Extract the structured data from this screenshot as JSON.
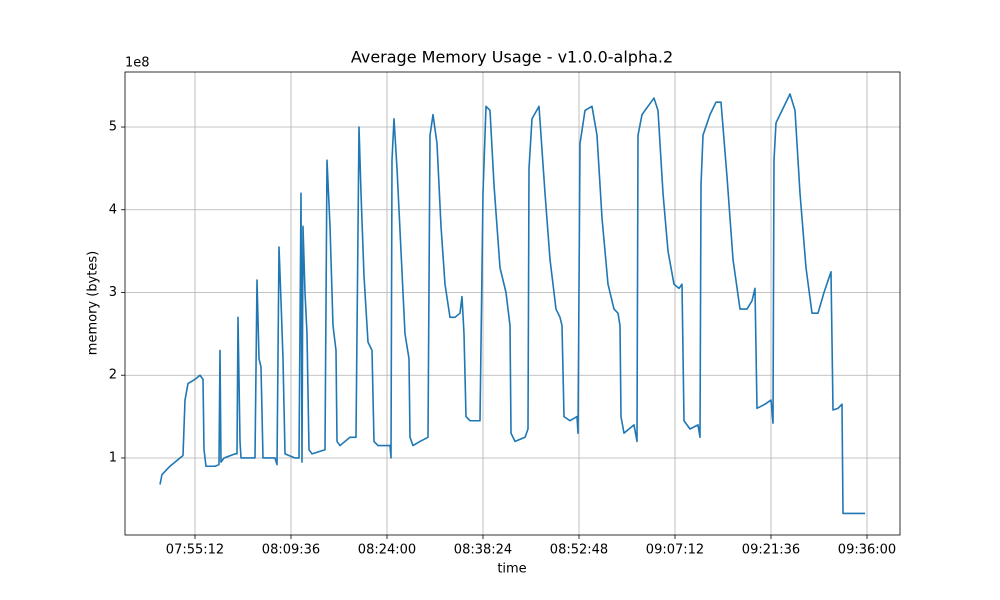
{
  "chart_data": {
    "type": "line",
    "title": "Average Memory Usage  -  v1.0.0-alpha.2",
    "x_label": "time",
    "y_label": "memory (bytes)",
    "y_offset_text": "1e8",
    "color": "#1f77b4",
    "grid": true,
    "xlim": [
      "07:44:42",
      "09:40:57"
    ],
    "xticks": [
      "07:55:12",
      "08:09:36",
      "08:24:00",
      "08:38:24",
      "08:52:48",
      "09:07:12",
      "09:21:36",
      "09:36:00"
    ],
    "ylim": [
      6900000.0,
      566500000.0
    ],
    "yticks": [
      {
        "value": 100000000.0,
        "label": "1"
      },
      {
        "value": 200000000.0,
        "label": "2"
      },
      {
        "value": 300000000.0,
        "label": "3"
      },
      {
        "value": 400000000.0,
        "label": "4"
      },
      {
        "value": 500000000.0,
        "label": "5"
      }
    ],
    "x": [
      "07:49:57",
      "07:50:15",
      "07:51:27",
      "07:53:24",
      "07:53:42",
      "07:54:09",
      "07:55:12",
      "07:55:57",
      "07:56:24",
      "07:56:33",
      "07:56:51",
      "07:58:12",
      "07:58:48",
      "07:58:57",
      "07:59:06",
      "07:59:33",
      "08:01:12",
      "08:01:30",
      "08:01:39",
      "08:01:57",
      "08:02:06",
      "08:03:45",
      "08:04:12",
      "08:04:30",
      "08:04:48",
      "08:05:06",
      "08:05:24",
      "08:07:12",
      "08:07:30",
      "08:07:48",
      "08:08:06",
      "08:08:24",
      "08:08:42",
      "08:10:12",
      "08:10:48",
      "08:11:06",
      "08:11:15",
      "08:11:24",
      "08:11:42",
      "08:12:00",
      "08:12:18",
      "08:12:45",
      "08:14:42",
      "08:15:00",
      "08:15:27",
      "08:15:54",
      "08:16:21",
      "08:16:30",
      "08:16:57",
      "08:18:27",
      "08:19:21",
      "08:19:48",
      "08:20:06",
      "08:20:33",
      "08:21:09",
      "08:21:45",
      "08:22:03",
      "08:22:39",
      "08:24:27",
      "08:24:36",
      "08:24:45",
      "08:25:03",
      "08:25:30",
      "08:26:06",
      "08:26:42",
      "08:27:18",
      "08:27:27",
      "08:27:54",
      "08:28:57",
      "08:30:09",
      "08:30:27",
      "08:30:54",
      "08:31:30",
      "08:32:06",
      "08:32:42",
      "08:33:27",
      "08:34:12",
      "08:34:57",
      "08:35:15",
      "08:35:33",
      "08:35:51",
      "08:36:27",
      "08:37:57",
      "08:38:24",
      "08:38:51",
      "08:39:27",
      "08:40:03",
      "08:40:57",
      "08:41:51",
      "08:42:27",
      "08:42:36",
      "08:43:12",
      "08:44:42",
      "08:45:09",
      "08:45:18",
      "08:45:45",
      "08:46:48",
      "08:47:42",
      "08:48:27",
      "08:49:21",
      "08:49:57",
      "08:50:15",
      "08:50:33",
      "08:51:27",
      "08:52:30",
      "08:52:39",
      "08:52:57",
      "08:53:42",
      "08:54:45",
      "08:55:30",
      "08:56:15",
      "08:57:09",
      "08:58:03",
      "08:58:39",
      "08:58:57",
      "08:59:06",
      "08:59:33",
      "09:01:03",
      "09:01:30",
      "09:01:39",
      "09:02:15",
      "09:03:09",
      "09:04:03",
      "09:04:39",
      "09:05:24",
      "09:06:09",
      "09:07:03",
      "09:07:48",
      "09:08:15",
      "09:08:33",
      "09:09:27",
      "09:10:39",
      "09:10:57",
      "09:11:06",
      "09:11:24",
      "09:12:27",
      "09:13:21",
      "09:14:06",
      "09:15:00",
      "09:15:54",
      "09:16:57",
      "09:18:00",
      "09:18:45",
      "09:19:12",
      "09:19:30",
      "09:20:42",
      "09:21:36",
      "09:21:54",
      "09:22:03",
      "09:22:21",
      "09:23:15",
      "09:24:27",
      "09:25:12",
      "09:25:57",
      "09:26:51",
      "09:27:45",
      "09:28:39",
      "09:29:33",
      "09:30:36",
      "09:30:54",
      "09:31:39",
      "09:32:15",
      "09:32:24",
      "09:35:42"
    ],
    "values": [
      68000000.0,
      80000000.0,
      90000000.0,
      103000000.0,
      170000000.0,
      190000000.0,
      195000000.0,
      200000000.0,
      195000000.0,
      110000000.0,
      90000000.0,
      90000000.0,
      92000000.0,
      230000000.0,
      95000000.0,
      100000000.0,
      105000000.0,
      105000000.0,
      270000000.0,
      120000000.0,
      100000000.0,
      100000000.0,
      100000000.0,
      315000000.0,
      220000000.0,
      210000000.0,
      100000000.0,
      100000000.0,
      92000000.0,
      355000000.0,
      290000000.0,
      220000000.0,
      105000000.0,
      100000000.0,
      100000000.0,
      420000000.0,
      95000000.0,
      380000000.0,
      300000000.0,
      250000000.0,
      110000000.0,
      105000000.0,
      110000000.0,
      460000000.0,
      380000000.0,
      260000000.0,
      230000000.0,
      120000000.0,
      115000000.0,
      125000000.0,
      125000000.0,
      500000000.0,
      420000000.0,
      320000000.0,
      240000000.0,
      230000000.0,
      120000000.0,
      115000000.0,
      115000000.0,
      100000000.0,
      460000000.0,
      510000000.0,
      450000000.0,
      350000000.0,
      250000000.0,
      220000000.0,
      125000000.0,
      115000000.0,
      120000000.0,
      125000000.0,
      490000000.0,
      515000000.0,
      480000000.0,
      380000000.0,
      310000000.0,
      270000000.0,
      270000000.0,
      275000000.0,
      295000000.0,
      250000000.0,
      150000000.0,
      145000000.0,
      145000000.0,
      420000000.0,
      525000000.0,
      520000000.0,
      430000000.0,
      330000000.0,
      300000000.0,
      260000000.0,
      130000000.0,
      120000000.0,
      125000000.0,
      135000000.0,
      450000000.0,
      510000000.0,
      525000000.0,
      420000000.0,
      340000000.0,
      280000000.0,
      270000000.0,
      260000000.0,
      150000000.0,
      145000000.0,
      150000000.0,
      130000000.0,
      480000000.0,
      520000000.0,
      525000000.0,
      490000000.0,
      390000000.0,
      310000000.0,
      280000000.0,
      275000000.0,
      260000000.0,
      150000000.0,
      130000000.0,
      140000000.0,
      120000000.0,
      490000000.0,
      515000000.0,
      525000000.0,
      535000000.0,
      520000000.0,
      420000000.0,
      350000000.0,
      310000000.0,
      305000000.0,
      310000000.0,
      145000000.0,
      135000000.0,
      140000000.0,
      125000000.0,
      430000000.0,
      490000000.0,
      515000000.0,
      530000000.0,
      530000000.0,
      440000000.0,
      340000000.0,
      280000000.0,
      280000000.0,
      290000000.0,
      305000000.0,
      160000000.0,
      165000000.0,
      170000000.0,
      142000000.0,
      460000000.0,
      505000000.0,
      520000000.0,
      540000000.0,
      520000000.0,
      420000000.0,
      330000000.0,
      275000000.0,
      275000000.0,
      300000000.0,
      325000000.0,
      158000000.0,
      160000000.0,
      165000000.0,
      33000000.0,
      33000000.0
    ]
  }
}
